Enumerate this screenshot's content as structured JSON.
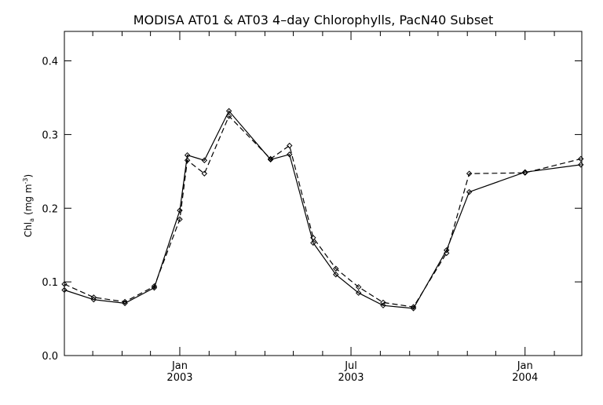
{
  "chart_data": {
    "type": "line",
    "title": "MODISA AT01 & AT03 4–day Chlorophylls, PacN40 Subset",
    "ylabel_main": "Chl",
    "ylabel_sub": "a",
    "ylabel_units": "(mg m",
    "ylabel_exp": "-3",
    "ylabel_close": ")",
    "xlim": [
      "2002-09-01",
      "2004-03-01"
    ],
    "ylim": [
      0.0,
      0.44
    ],
    "yticks": [
      {
        "value": 0.0,
        "label": "0.0"
      },
      {
        "value": 0.1,
        "label": "0.1"
      },
      {
        "value": 0.2,
        "label": "0.2"
      },
      {
        "value": 0.3,
        "label": "0.3"
      },
      {
        "value": 0.4,
        "label": "0.4"
      }
    ],
    "xticks_major": [
      {
        "date": "2003-01-01",
        "label1": "Jan",
        "label2": "2003"
      },
      {
        "date": "2003-07-01",
        "label1": "Jul",
        "label2": "2003"
      },
      {
        "date": "2004-01-01",
        "label1": "Jan",
        "label2": "2004"
      }
    ],
    "xticks_minor": [
      "2002-10-01",
      "2002-11-01",
      "2002-12-01",
      "2003-02-01",
      "2003-03-01",
      "2003-04-01",
      "2003-05-01",
      "2003-06-01",
      "2003-08-01",
      "2003-09-01",
      "2003-10-01",
      "2003-11-01",
      "2003-12-01",
      "2004-02-01"
    ],
    "series": [
      {
        "style": "solid",
        "color": "#000000",
        "x": [
          "2002-09-01",
          "2002-10-02",
          "2002-11-04",
          "2002-12-05",
          "2003-01-01",
          "2003-01-09",
          "2003-01-27",
          "2003-02-22",
          "2003-04-07",
          "2003-04-27",
          "2003-05-22",
          "2003-06-15",
          "2003-07-09",
          "2003-08-04",
          "2003-09-05",
          "2003-10-10",
          "2003-11-03",
          "2004-01-01",
          "2004-02-29"
        ],
        "y": [
          0.089,
          0.076,
          0.071,
          0.092,
          0.197,
          0.272,
          0.265,
          0.332,
          0.266,
          0.273,
          0.153,
          0.11,
          0.085,
          0.068,
          0.064,
          0.143,
          0.222,
          0.249,
          0.259
        ]
      },
      {
        "style": "dashed",
        "color": "#000000",
        "x": [
          "2002-09-01",
          "2002-10-02",
          "2002-11-04",
          "2002-12-05",
          "2003-01-01",
          "2003-01-09",
          "2003-01-27",
          "2003-02-22",
          "2003-04-07",
          "2003-04-27",
          "2003-05-22",
          "2003-06-15",
          "2003-07-09",
          "2003-08-04",
          "2003-09-05",
          "2003-10-10",
          "2003-11-03",
          "2004-01-01",
          "2004-02-29"
        ],
        "y": [
          0.097,
          0.079,
          0.073,
          0.094,
          0.185,
          0.265,
          0.247,
          0.325,
          0.267,
          0.285,
          0.16,
          0.118,
          0.093,
          0.072,
          0.066,
          0.139,
          0.247,
          0.248,
          0.267
        ]
      }
    ]
  }
}
